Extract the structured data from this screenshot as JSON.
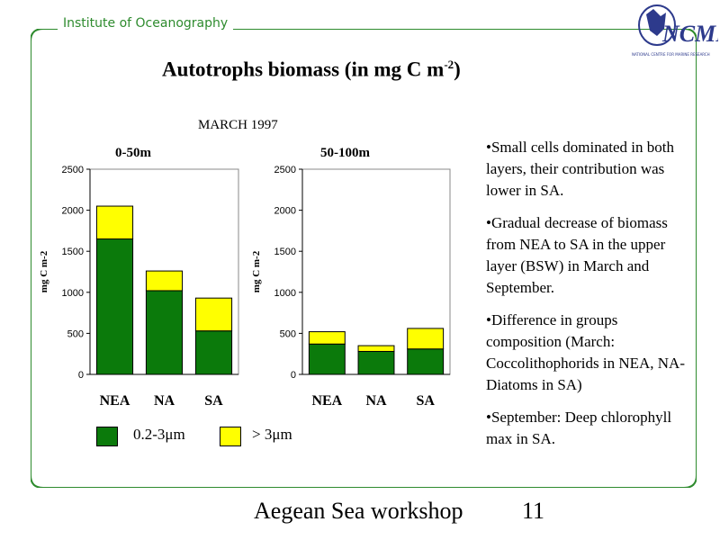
{
  "header": {
    "institute": "Institute of Oceanography"
  },
  "logo": {
    "text": "NCMR",
    "tagline": "NATIONAL CENTRE FOR MARINE RESEARCH"
  },
  "slide": {
    "title": "Autotrophs biomass (in mg C m",
    "title_sup": "-2",
    "title_end": ")",
    "subtitle": "MARCH 1997"
  },
  "chart_data": [
    {
      "type": "bar",
      "stacked": true,
      "title": "0-50m",
      "ylabel": "mg C m-2",
      "ylim": [
        0,
        2500
      ],
      "yticks": [
        0,
        500,
        1000,
        1500,
        2000,
        2500
      ],
      "categories": [
        "NEA",
        "NA",
        "SA"
      ],
      "series": [
        {
          "name": "0.2-3μm",
          "color": "#0b7a0b",
          "values": [
            1650,
            1020,
            530
          ]
        },
        {
          "name": "> 3μm",
          "color": "#ffff00",
          "values": [
            400,
            240,
            400
          ]
        }
      ]
    },
    {
      "type": "bar",
      "stacked": true,
      "title": "50-100m",
      "ylabel": "mg C m-2",
      "ylim": [
        0,
        2500
      ],
      "yticks": [
        0,
        500,
        1000,
        1500,
        2000,
        2500
      ],
      "categories": [
        "NEA",
        "NA",
        "SA"
      ],
      "series": [
        {
          "name": "0.2-3μm",
          "color": "#0b7a0b",
          "values": [
            370,
            280,
            310
          ]
        },
        {
          "name": "> 3μm",
          "color": "#ffff00",
          "values": [
            150,
            70,
            250
          ]
        }
      ]
    }
  ],
  "legend": {
    "item1": "0.2-3μm",
    "item2": "> 3μm"
  },
  "bullets": [
    "•Small cells dominated in both layers, their contribution was lower in SA.",
    "•Gradual decrease of biomass from NEA to SA in the upper layer (BSW) in March and September.",
    "•Difference in groups composition (March: Coccolithophorids in NEA, NA-Diatoms in SA)",
    "•September: Deep chlorophyll max in SA."
  ],
  "footer": {
    "text": "Aegean Sea workshop",
    "page": "11"
  },
  "colors": {
    "frame": "#2e8b2e",
    "small_cells": "#0b7a0b",
    "large_cells": "#ffff00",
    "logo": "#2d3a8c"
  }
}
